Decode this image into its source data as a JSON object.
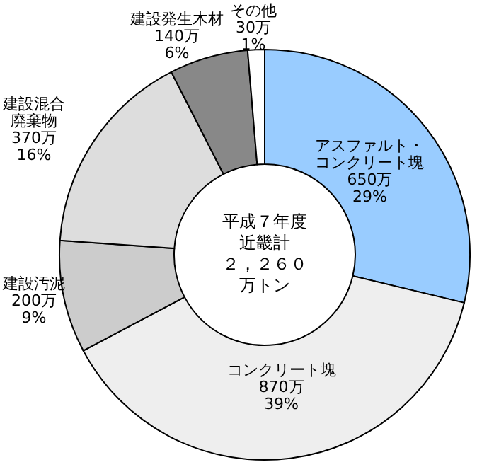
{
  "chart_data": {
    "type": "donut",
    "title": "平成７年度近畿計",
    "subtitle": "２，２６０万トン",
    "categories": [
      "アスファルト・コンクリート塊",
      "コンクリート塊",
      "建設汚泥",
      "建設混合廃棄物",
      "建設発生木材",
      "その他"
    ],
    "values": [
      650,
      870,
      200,
      370,
      140,
      30
    ],
    "value_labels": [
      "650万 29%",
      "870万 39%",
      "200万 9%",
      "370万 16%",
      "140万 6%",
      "30万 1%"
    ],
    "colors": [
      "#99ccff",
      "#eeeeee",
      "#cccccc",
      "#dddddd",
      "#888888",
      "#ffffff"
    ]
  }
}
